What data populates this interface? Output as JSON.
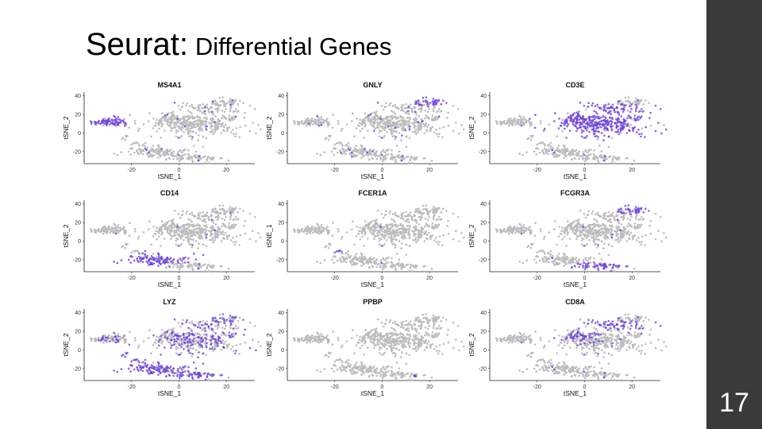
{
  "slide": {
    "title_main": "Seurat:",
    "title_sub": "Differential Genes",
    "slide_number": "17"
  },
  "colors": {
    "background_cell": "#bdbdbd",
    "expression": "#6a3fe0",
    "sidebar": "#3a3a3a"
  },
  "chart_data": [
    {
      "type": "scatter",
      "title": "MS4A1",
      "xlabel": "tSNE_1",
      "ylabel": "tSNE_2",
      "x_ticks": [
        "-20",
        "0",
        "20"
      ],
      "y_ticks": [
        "40",
        "20",
        "0",
        "-20"
      ],
      "x_tick_values": [
        -20,
        0,
        20
      ],
      "y_tick_values": [
        40,
        20,
        0,
        -20
      ],
      "xlim": [
        -40,
        32
      ],
      "ylim": [
        -33,
        44
      ],
      "highlight": "b_cluster",
      "background_signal": 0.05
    },
    {
      "type": "scatter",
      "title": "GNLY",
      "xlabel": "tSNE_1",
      "ylabel": "tSNE_2",
      "x_ticks": [
        "-20",
        "0",
        "20"
      ],
      "y_ticks": [
        "40",
        "20",
        "0",
        "-20"
      ],
      "x_tick_values": [
        -20,
        0,
        20
      ],
      "y_tick_values": [
        40,
        20,
        0,
        -20
      ],
      "xlim": [
        -40,
        32
      ],
      "ylim": [
        -33,
        44
      ],
      "highlight": "nk_cluster",
      "background_signal": 0.06
    },
    {
      "type": "scatter",
      "title": "CD3E",
      "xlabel": "tSNE_1",
      "ylabel": "tSNE_2",
      "x_ticks": [
        "-20",
        "0",
        "20"
      ],
      "y_ticks": [
        "40",
        "20",
        "0",
        "-20"
      ],
      "x_tick_values": [
        -20,
        0,
        20
      ],
      "y_tick_values": [
        40,
        20,
        0,
        -20
      ],
      "xlim": [
        -40,
        32
      ],
      "ylim": [
        -33,
        44
      ],
      "highlight": "t_cells",
      "background_signal": 0.04
    },
    {
      "type": "scatter",
      "title": "CD14",
      "xlabel": "tSNE_1",
      "ylabel": "tSNE_2",
      "x_ticks": [
        "-20",
        "0",
        "20"
      ],
      "y_ticks": [
        "40",
        "20",
        "0",
        "-20"
      ],
      "x_tick_values": [
        -20,
        0,
        20
      ],
      "y_tick_values": [
        40,
        20,
        0,
        -20
      ],
      "xlim": [
        -40,
        32
      ],
      "ylim": [
        -33,
        44
      ],
      "highlight": "cd14_mono",
      "background_signal": 0.03
    },
    {
      "type": "scatter",
      "title": "FCER1A",
      "xlabel": "tSNE_1",
      "ylabel": "tSNE_1",
      "x_ticks": [
        "-20",
        "0",
        "20"
      ],
      "y_ticks": [
        "40",
        "20",
        "0",
        "-20"
      ],
      "x_tick_values": [
        -20,
        0,
        20
      ],
      "y_tick_values": [
        40,
        20,
        0,
        -20
      ],
      "xlim": [
        -40,
        32
      ],
      "ylim": [
        -33,
        44
      ],
      "highlight": "dc_cluster",
      "background_signal": 0.01
    },
    {
      "type": "scatter",
      "title": "FCGR3A",
      "xlabel": "tSNE_1",
      "ylabel": "tSNE_2",
      "x_ticks": [
        "-20",
        "0",
        "20"
      ],
      "y_ticks": [
        "40",
        "20",
        "0",
        "-20"
      ],
      "x_tick_values": [
        -20,
        0,
        20
      ],
      "y_tick_values": [
        40,
        20,
        0,
        -20
      ],
      "xlim": [
        -40,
        32
      ],
      "ylim": [
        -33,
        44
      ],
      "highlight": "fcgr3a_mono",
      "background_signal": 0.03
    },
    {
      "type": "scatter",
      "title": "LYZ",
      "xlabel": "tSNE_1",
      "ylabel": "tSNE_2",
      "x_ticks": [
        "-20",
        "0",
        "20"
      ],
      "y_ticks": [
        "40",
        "20",
        "0",
        "-20"
      ],
      "x_tick_values": [
        -20,
        0,
        20
      ],
      "y_tick_values": [
        40,
        20,
        0,
        -20
      ],
      "xlim": [
        -40,
        32
      ],
      "ylim": [
        -33,
        44
      ],
      "highlight": "myeloid_all",
      "background_signal": 0.35
    },
    {
      "type": "scatter",
      "title": "PPBP",
      "xlabel": "tSNE_1",
      "ylabel": "tSNE_2",
      "x_ticks": [
        "-20",
        "0",
        "20"
      ],
      "y_ticks": [
        "40",
        "20",
        "0",
        "-20"
      ],
      "x_tick_values": [
        -20,
        0,
        20
      ],
      "y_tick_values": [
        40,
        20,
        0,
        -20
      ],
      "xlim": [
        -40,
        32
      ],
      "ylim": [
        -33,
        44
      ],
      "highlight": "platelet",
      "background_signal": 0.0
    },
    {
      "type": "scatter",
      "title": "CD8A",
      "xlabel": "tSNE_1",
      "ylabel": "tSNE_2",
      "x_ticks": [
        "-20",
        "0",
        "20"
      ],
      "y_ticks": [
        "40",
        "20",
        "0",
        "-20"
      ],
      "x_tick_values": [
        -20,
        0,
        20
      ],
      "y_tick_values": [
        40,
        20,
        0,
        -20
      ],
      "xlim": [
        -40,
        32
      ],
      "ylim": [
        -33,
        44
      ],
      "highlight": "cd8_cluster",
      "background_signal": 0.04
    }
  ]
}
